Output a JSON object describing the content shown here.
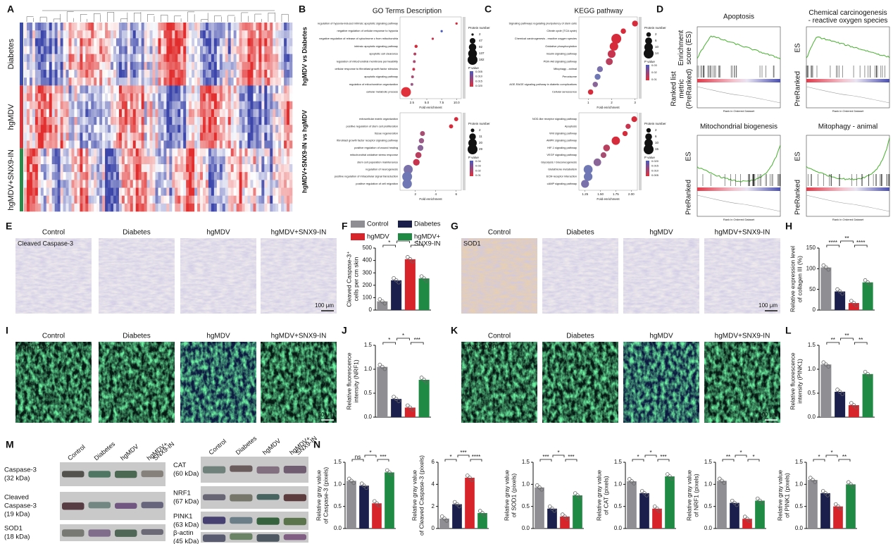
{
  "panel_labels": [
    "A",
    "B",
    "C",
    "D",
    "E",
    "F",
    "G",
    "H",
    "I",
    "J",
    "K",
    "L",
    "M",
    "N"
  ],
  "groups": [
    {
      "name": [
        "Control"
      ],
      "color": "#8e8e93"
    },
    {
      "name": [
        "Diabetes"
      ],
      "color": "#1b1f4b"
    },
    {
      "name": [
        "hgMDV"
      ],
      "color": "#d7242b"
    },
    {
      "name": [
        "hgMDV+",
        "SNX9-IN"
      ],
      "color": "#1f8a43"
    }
  ],
  "image_columns": [
    "Control",
    "Diabetes",
    "hgMDV",
    "hgMDV+SNX9-IN"
  ],
  "heatmap": {
    "rows": [
      "Diabetes",
      "hgMDV",
      "hgMDV+SNX9-IN"
    ]
  },
  "go": {
    "title": "GO Terms Description",
    "comparisons": [
      "hgMDV vs Diabetes",
      "hgMDV+SNX9-IN vs hgMDV"
    ]
  },
  "kegg": {
    "title": "KEGG pathway"
  },
  "gsea": {
    "panels": [
      {
        "title": [
          "Apoptosis"
        ],
        "ylabels": [
          [
            "Enrichment",
            "score (ES)"
          ],
          [
            "Ranked list",
            "metric",
            "(PreRanked)"
          ]
        ]
      },
      {
        "title": [
          "Chemical carcinogenesis",
          "- reactive oxygen species"
        ],
        "ylabels": [
          [
            "ES"
          ],
          [
            "PreRanked"
          ]
        ]
      },
      {
        "title": [
          "Mitochondrial biogenesis"
        ],
        "ylabels": [
          [
            "ES"
          ],
          [
            "PreRanked"
          ]
        ]
      },
      {
        "title": [
          "Mitophagy - animal"
        ],
        "ylabels": [
          [
            "ES"
          ],
          [
            "PreRanked"
          ]
        ]
      }
    ],
    "xlabel": "Rank in Ordered Dataset"
  },
  "micrographs": {
    "stains": [
      "Cleaved Caspase-3",
      "SOD1",
      "NRF1/DAPI",
      "PINK1/DAPI"
    ],
    "scalebars": [
      "100 μm",
      "100 μm",
      "50 μm",
      "100 μm"
    ]
  },
  "blots": {
    "lanes": [
      [
        "Control"
      ],
      [
        "Diabetes"
      ],
      [
        "hgMDV"
      ],
      [
        "hgMDV+",
        "SNX9-IN"
      ]
    ],
    "left": [
      [
        "Caspase-3",
        "(32 kDa)"
      ],
      [
        "Cleaved",
        "Caspase-3",
        "(19 kDa)"
      ],
      [
        "SOD1",
        "(18 kDa)"
      ]
    ],
    "right": [
      [
        "CAT",
        "(60 kDa)"
      ],
      [
        "NRF1",
        "(67 kDa)"
      ],
      [
        "PINK1",
        "(63 kDa)"
      ],
      [
        "β-actin",
        "(45 kDa)"
      ]
    ]
  },
  "chart_data": [
    {
      "type": "dot",
      "categories": [
        "regulation of hypoxia-induced intrinsic apoptotic signaling pathway",
        "negative regulation of cellular response to hypoxia",
        "negative regulation of release of cytochrome c from mitochondria",
        "intrinsic apoptotic signaling pathway",
        "apoptotic cell clearance",
        "regulation of mitochondrial membrane permeability",
        "cellular response to fibroblast growth factor stimulus",
        "apoptotic signaling pathway",
        "regulation of mitochondrion organization",
        "cellular metabolic process"
      ],
      "values": [
        10,
        7.5,
        6,
        3.2,
        3,
        2.9,
        2.8,
        2.6,
        2.5,
        1.5
      ],
      "sizes": [
        2,
        2,
        2,
        8,
        5,
        5,
        5,
        5,
        5,
        182
      ],
      "colors": [
        "#d62b3a",
        "#4a5bbf",
        "#c8334d",
        "#d62b3a",
        "#b8405e",
        "#a84d72",
        "#c8334d",
        "#a84d72",
        "#9a5a85",
        "#e0303a"
      ],
      "xlabel": "Fold enrichment",
      "xlim": [
        0.5,
        10.8
      ],
      "xticks": [
        2.5,
        {
          "value": 5,
          "label": "5.0"
        },
        7.5,
        {
          "value": 10,
          "label": "10.0"
        }
      ],
      "size_legend_title": "Protein number",
      "size_legend": [
        2,
        47,
        92,
        137,
        182
      ],
      "color_legend_title": "P value",
      "color_legend": [
        "0.005",
        "0.010",
        "0.015",
        "0.020"
      ]
    },
    {
      "type": "dot",
      "categories": [
        "extracellular matrix organization",
        "positive regulation of stem cell proliferation",
        "tissue regeneration",
        "fibroblast growth factor receptor signaling pathway",
        "positive regulation of wound healing",
        "mitochondrial oxidative stress response",
        "stem cell population maintenance",
        "regulation of neurogenesis",
        "positive regulation of intracellular signal transduction",
        "positive regulation of cell migration"
      ],
      "values": [
        6,
        5.5,
        2.7,
        2.6,
        2.5,
        2.3,
        2.1,
        1.3,
        1.2,
        1.2
      ],
      "sizes": [
        3,
        3,
        5,
        6,
        8,
        9,
        11,
        24,
        29,
        26
      ],
      "colors": [
        "#d62b3a",
        "#d62b3a",
        "#a84d72",
        "#9a5a85",
        "#8a6698",
        "#b8405e",
        "#c8334d",
        "#7a70aa",
        "#6f78b5",
        "#6f78b5"
      ],
      "xlabel": "Fold enrichment",
      "xlim": [
        0.5,
        6.5
      ],
      "xticks": [
        2,
        4,
        6
      ],
      "size_legend_title": "Protein number",
      "size_legend": [
        2,
        11,
        20,
        29
      ],
      "color_legend_title": "P value",
      "color_legend": [
        "0.04",
        "0.03",
        "0.02",
        "0.01"
      ]
    },
    {
      "type": "dot",
      "categories": [
        "Signaling pathways regulating pluripotency of stem cells",
        "Citrate cycle (TCA cycle)",
        "Chemical carcinogenesis - reactive oxygen species",
        "Oxidative phosphorylation",
        "Insulin signaling pathway",
        "PI3K-Akt signaling pathway",
        "Mitophagy - animal",
        "Peroxisome",
        "AGE-RAGE signaling pathway in diabetic complications",
        "Cellular senescence"
      ],
      "values": [
        3,
        2.5,
        2.2,
        2.1,
        2,
        1.9,
        1.5,
        1.4,
        1.3,
        1.1
      ],
      "sizes": [
        4,
        3,
        14,
        10,
        8,
        6,
        4,
        4,
        3,
        3
      ],
      "colors": [
        "#d62b3a",
        "#d62b3a",
        "#d62b3a",
        "#d62b3a",
        "#c8334d",
        "#b8405e",
        "#7a70aa",
        "#6f78b5",
        "#8a6698",
        "#d62b3a"
      ],
      "xlabel": "Fold enrichment",
      "xlim": [
        0.6,
        3.1
      ],
      "xticks": [
        1,
        2,
        3
      ],
      "size_legend_title": "Protein number",
      "size_legend": [
        2,
        6,
        10,
        14
      ],
      "color_legend_title": "P value",
      "color_legend": [
        "0.03",
        "0.02",
        "0.01"
      ]
    },
    {
      "type": "dot",
      "categories": [
        "NOD-like receptor signaling pathway",
        "Apoptosis",
        "Wnt signaling pathway",
        "AMPK signaling pathway",
        "HIF-1 signaling pathway",
        "VEGF signaling pathway",
        "Glycolysis / Gluconeogenesis",
        "Glutathione metabolism",
        "ECM-receptor interaction",
        "cAMP signaling pathway"
      ],
      "values": [
        2.05,
        1.95,
        1.9,
        1.75,
        1.6,
        1.55,
        1.45,
        1.3,
        1.3,
        1.25
      ],
      "sizes": [
        4,
        3,
        3,
        10,
        6,
        4,
        8,
        12,
        11,
        9
      ],
      "colors": [
        "#d62b3a",
        "#c8334d",
        "#d62b3a",
        "#d62b3a",
        "#b8405e",
        "#a84d72",
        "#8a6698",
        "#6f78b5",
        "#6f78b5",
        "#7a70aa"
      ],
      "xlabel": "Fold enrichment",
      "xlim": [
        1.15,
        2.1
      ],
      "xticks": [
        1.25,
        {
          "value": 1.5,
          "label": "1.50"
        },
        1.75,
        {
          "value": 2,
          "label": "2.00"
        }
      ],
      "size_legend_title": "Protein number",
      "size_legend": [
        2,
        6,
        10,
        15
      ],
      "color_legend_title": "P value",
      "color_legend": [
        "0.020",
        "0.015",
        "0.010",
        "0.005"
      ]
    },
    {
      "type": "bar",
      "ylabel": [
        "Cleaved Caspase-3⁺",
        "cells per cm skin"
      ],
      "values": [
        70,
        240,
        410,
        255
      ],
      "ylim": [
        0,
        500
      ],
      "yticks": [
        0,
        100,
        200,
        300,
        400,
        500
      ],
      "significance": [
        "*",
        "*",
        "*"
      ]
    },
    {
      "type": "bar",
      "ylabel": [
        "Relative expression level",
        "of collagen III (%)"
      ],
      "values": [
        103,
        45,
        17,
        67
      ],
      "ylim": [
        0,
        150
      ],
      "yticks": [
        0,
        50,
        100,
        150
      ],
      "significance": [
        "****",
        "**",
        "****"
      ]
    },
    {
      "type": "bar",
      "ylabel": [
        "Relative fluorescence",
        "intensity (NRF1)"
      ],
      "values": [
        1.05,
        0.38,
        0.2,
        0.78
      ],
      "ylim": [
        0,
        1.5
      ],
      "yticks": [
        {
          "value": 0,
          "label": "0.0"
        },
        0.5,
        {
          "value": 1,
          "label": "1.0"
        },
        1.5
      ],
      "significance": [
        "*",
        "*",
        "***"
      ]
    },
    {
      "type": "bar",
      "ylabel": [
        "Relative fluorescence",
        "intensity (PINK1)"
      ],
      "values": [
        1.1,
        0.53,
        0.25,
        0.9
      ],
      "ylim": [
        0,
        1.5
      ],
      "yticks": [
        {
          "value": 0,
          "label": "0.0"
        },
        0.5,
        {
          "value": 1,
          "label": "1.0"
        },
        1.5
      ],
      "significance": [
        "**",
        "**",
        "**"
      ]
    },
    {
      "type": "bar",
      "ylabel": [
        "Relative gray value",
        "of Caspase-3 (pixels)"
      ],
      "values": [
        1.08,
        0.97,
        0.57,
        1.27
      ],
      "ylim": [
        0,
        1.5
      ],
      "yticks": [
        {
          "value": 0,
          "label": "0.0"
        },
        0.5,
        {
          "value": 1,
          "label": "1.0"
        },
        1.5
      ],
      "significance": [
        "ns",
        "*",
        "***"
      ]
    },
    {
      "type": "bar",
      "ylabel": [
        "Relative gray value",
        "of Cleaved Caspase-3 (pixels)"
      ],
      "values": [
        0.9,
        2.2,
        4.6,
        1.4
      ],
      "ylim": [
        0,
        6
      ],
      "yticks": [
        0,
        2,
        4,
        6
      ],
      "significance": [
        "*",
        "***",
        "****"
      ]
    },
    {
      "type": "bar",
      "ylabel": [
        "Relative gray value",
        "of SOD1 (pixels)"
      ],
      "values": [
        0.93,
        0.45,
        0.27,
        0.75
      ],
      "ylim": [
        0,
        1.5
      ],
      "yticks": [
        {
          "value": 0,
          "label": "0.0"
        },
        0.5,
        {
          "value": 1,
          "label": "1.0"
        },
        1.5
      ],
      "significance": [
        "***",
        "*",
        "***"
      ]
    },
    {
      "type": "bar",
      "ylabel": [
        "Relative gray value",
        "of CAT (pixels)"
      ],
      "values": [
        1.07,
        0.8,
        0.45,
        1.18
      ],
      "ylim": [
        0,
        1.5
      ],
      "yticks": [
        {
          "value": 0,
          "label": "0.0"
        },
        0.5,
        {
          "value": 1,
          "label": "1.0"
        },
        1.5
      ],
      "significance": [
        "*",
        "*",
        "***"
      ]
    },
    {
      "type": "bar",
      "ylabel": [
        "Relative gray value",
        "of NRF1 (pixels)"
      ],
      "values": [
        1.08,
        0.58,
        0.22,
        0.63
      ],
      "ylim": [
        0,
        1.5
      ],
      "yticks": [
        {
          "value": 0,
          "label": "0.0"
        },
        0.5,
        {
          "value": 1,
          "label": "1.0"
        },
        1.5
      ],
      "significance": [
        "**",
        "*",
        "*"
      ]
    },
    {
      "type": "bar",
      "ylabel": [
        "Relative gray value",
        "of PINK1 (pixels)"
      ],
      "values": [
        1.1,
        0.8,
        0.5,
        1.0
      ],
      "ylim": [
        0,
        1.5
      ],
      "yticks": [
        {
          "value": 0,
          "label": "0.0"
        },
        0.5,
        {
          "value": 1,
          "label": "1.0"
        },
        1.5
      ],
      "significance": [
        "*",
        "*",
        "**"
      ]
    }
  ]
}
